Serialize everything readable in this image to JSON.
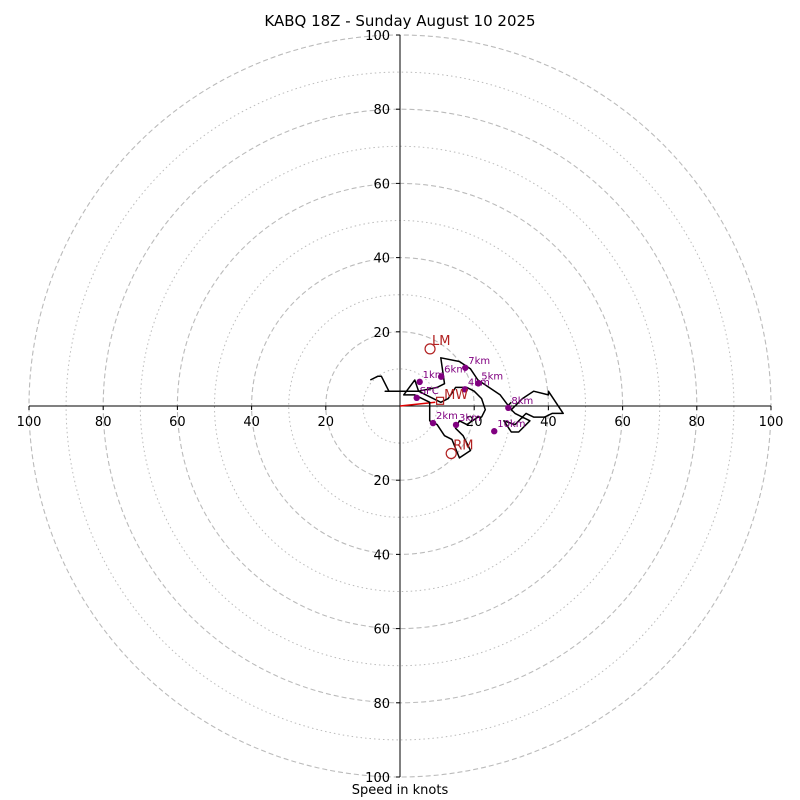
{
  "chart_data": {
    "type": "scatter",
    "title": "KABQ 18Z - Sunday August 10 2025",
    "xlabel": "Speed in knots",
    "ring_labels_major": [
      20,
      40,
      60,
      80,
      100
    ],
    "ring_values_minor": [
      10,
      30,
      50,
      70,
      90
    ],
    "axis_tick_labels": {
      "left": [
        "100",
        "80",
        "60",
        "40",
        "20"
      ],
      "right": [
        "20",
        "40",
        "60",
        "80",
        "100"
      ],
      "top": [
        "100",
        "80",
        "60",
        "40",
        "20"
      ],
      "bottom": [
        "20",
        "40",
        "60",
        "80",
        "100"
      ]
    },
    "range": [
      -100,
      100
    ],
    "grid": true,
    "colors": {
      "trace": "#000000",
      "height_marker": "#800080",
      "motion": "#b22222",
      "grid": "#bbbbbb",
      "shear_vector": "#dd0000"
    },
    "hodograph_trace": [
      [
        -8,
        7
      ],
      [
        -6,
        8
      ],
      [
        -5,
        8
      ],
      [
        -3,
        4
      ],
      [
        -4,
        4
      ],
      [
        -2,
        4
      ],
      [
        5,
        4
      ],
      [
        7,
        3
      ],
      [
        11,
        1
      ],
      [
        13,
        2
      ],
      [
        15,
        5
      ],
      [
        18,
        5
      ],
      [
        20,
        4
      ],
      [
        22,
        2
      ],
      [
        23,
        -1
      ],
      [
        22,
        -3
      ],
      [
        21,
        -3
      ],
      [
        18,
        -5
      ],
      [
        16,
        -4
      ],
      [
        15,
        -6
      ],
      [
        17,
        -8
      ],
      [
        19,
        -12
      ],
      [
        16,
        -14
      ],
      [
        14,
        -9
      ],
      [
        12,
        -8
      ],
      [
        10,
        -5
      ],
      [
        8,
        -4
      ],
      [
        8,
        1
      ],
      [
        4,
        3
      ],
      [
        1,
        3
      ],
      [
        4,
        7
      ],
      [
        5,
        4
      ],
      [
        10,
        5
      ],
      [
        12,
        6
      ],
      [
        11,
        13
      ],
      [
        16,
        12
      ],
      [
        19,
        10
      ],
      [
        21,
        7
      ],
      [
        24,
        5
      ],
      [
        27,
        3
      ],
      [
        30,
        -1
      ],
      [
        33,
        2
      ],
      [
        36,
        4
      ],
      [
        40,
        3
      ],
      [
        40,
        4
      ],
      [
        44,
        -2
      ],
      [
        41,
        -2
      ],
      [
        39,
        -3
      ],
      [
        38,
        -3
      ],
      [
        36,
        -3
      ],
      [
        34,
        -2
      ],
      [
        31,
        -5
      ],
      [
        28,
        -4
      ],
      [
        30,
        -7
      ],
      [
        32,
        -7
      ],
      [
        35,
        -4
      ],
      [
        31,
        -2
      ],
      [
        29,
        0
      ],
      [
        30,
        1
      ]
    ],
    "height_markers": [
      {
        "label": "SFC",
        "u": 4.5,
        "v": 2.2
      },
      {
        "label": "1km",
        "u": 5.3,
        "v": 6.5
      },
      {
        "label": "2km",
        "u": 8.9,
        "v": -4.6
      },
      {
        "label": "3km",
        "u": 15.1,
        "v": -5.1
      },
      {
        "label": "4km",
        "u": 17.5,
        "v": 4.5
      },
      {
        "label": "5km",
        "u": 21.1,
        "v": 6.1
      },
      {
        "label": "6km",
        "u": 11.1,
        "v": 7.9
      },
      {
        "label": "7km",
        "u": 17.6,
        "v": 10.3
      },
      {
        "label": "8km",
        "u": 29.2,
        "v": -0.5
      },
      {
        "label": "10km",
        "u": 25.4,
        "v": -6.8
      }
    ],
    "storm_motions": [
      {
        "label": "LM",
        "u": 8.1,
        "v": 15.4
      },
      {
        "label": "RM",
        "u": 13.8,
        "v": -12.8
      },
      {
        "label": "MW",
        "u": 10.8,
        "v": 1.4
      }
    ],
    "shear_vector": {
      "from": [
        0,
        0
      ],
      "to": [
        9.5,
        1.0
      ]
    }
  }
}
